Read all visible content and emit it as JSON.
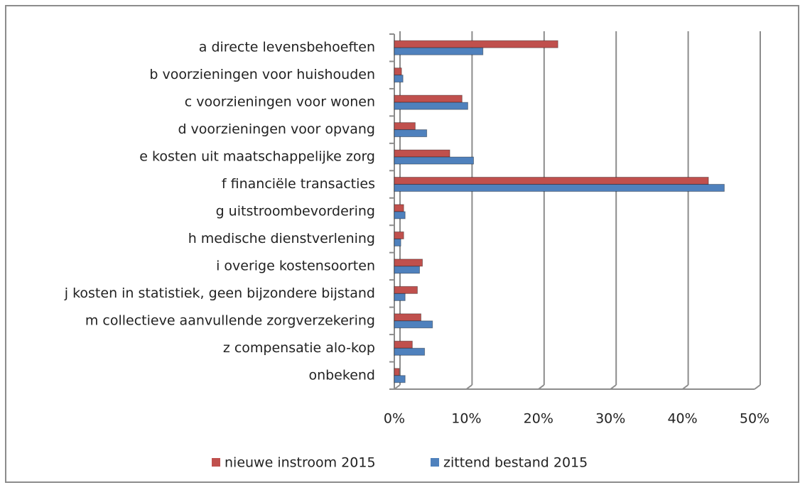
{
  "chart_data": {
    "type": "bar",
    "orientation": "horizontal",
    "categories": [
      "a directe levensbehoeften",
      "b voorzieningen voor huishouden",
      "c voorzieningen voor wonen",
      "d voorzieningen voor opvang",
      "e kosten uit maatschappelijke zorg",
      "f financiële transacties",
      "g uitstroombevordering",
      "h medische dienstverlening",
      "i overige kostensoorten",
      "j kosten in statistiek, geen bijzondere bijstand",
      "m collectieve aanvullende zorgverzekering",
      "z compensatie alo-kop",
      "onbekend"
    ],
    "series": [
      {
        "name": "nieuwe instroom 2015",
        "color": "#c0504d",
        "values": [
          22.7,
          1.0,
          9.4,
          2.9,
          7.7,
          43.6,
          1.3,
          1.3,
          3.9,
          3.2,
          3.7,
          2.5,
          0.7
        ]
      },
      {
        "name": "zittend bestand 2015",
        "color": "#4f81bd",
        "values": [
          12.3,
          1.2,
          10.2,
          4.5,
          11.0,
          45.8,
          1.5,
          0.9,
          3.5,
          1.5,
          5.3,
          4.2,
          1.5
        ]
      }
    ],
    "xlim": [
      0,
      50
    ],
    "xticks": [
      {
        "value": 0,
        "label": "0%"
      },
      {
        "value": 10,
        "label": "10%"
      },
      {
        "value": 20,
        "label": "20%"
      },
      {
        "value": 30,
        "label": "30%"
      },
      {
        "value": 40,
        "label": "40%"
      },
      {
        "value": 50,
        "label": "50%"
      }
    ],
    "grid": true,
    "legend": "bottom"
  }
}
